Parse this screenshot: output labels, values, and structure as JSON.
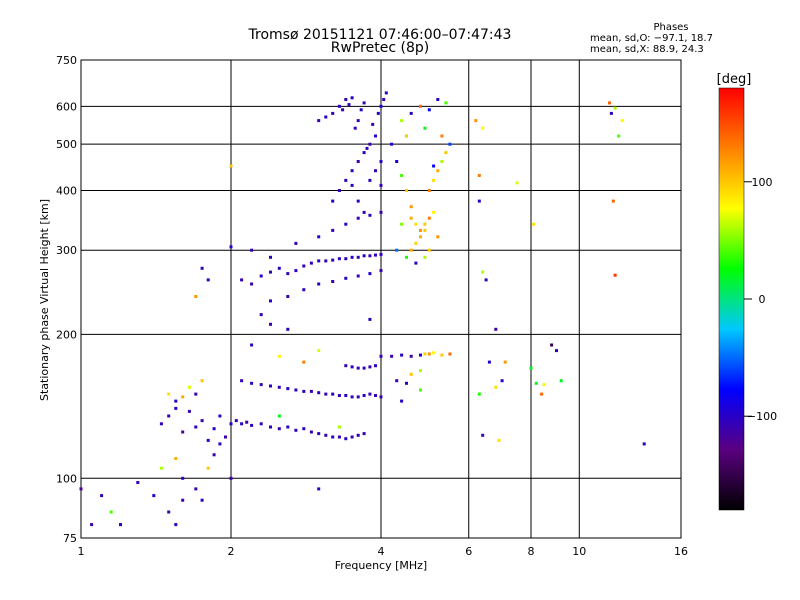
{
  "title_line1": "Tromsø 20151121 07:46:00–07:47:43",
  "title_line2": "RwPretec (8p)",
  "phases": {
    "heading": "Phases",
    "line_o": "mean, sd,O: −97.1, 18.7",
    "line_x": "mean, sd,X:  88.9, 24.3"
  },
  "colorbar": {
    "label": "[deg]",
    "range": [
      -180,
      180
    ],
    "ticks": [
      {
        "value": 100,
        "label": "100"
      },
      {
        "value": 0,
        "label": "0"
      },
      {
        "value": -100,
        "label": "−100"
      }
    ],
    "colors": [
      "#000000",
      "#5a0080",
      "#0000ff",
      "#00c8ff",
      "#00ff00",
      "#ffff00",
      "#ff8000",
      "#ff0000"
    ]
  },
  "chart_data": {
    "type": "scatter",
    "xlabel": "Frequency [MHz]",
    "ylabel": "Stationary phase Virtual Height [km]",
    "xscale": "log",
    "yscale": "log",
    "xlim": [
      1,
      16
    ],
    "ylim": [
      75,
      750
    ],
    "grid": true,
    "x_ticks": [
      {
        "v": 1,
        "l": "1"
      },
      {
        "v": 2,
        "l": "2"
      },
      {
        "v": 4,
        "l": "4"
      },
      {
        "v": 6,
        "l": "6"
      },
      {
        "v": 8,
        "l": "8"
      },
      {
        "v": 10,
        "l": "10"
      },
      {
        "v": 16,
        "l": "16"
      }
    ],
    "y_ticks": [
      {
        "v": 75,
        "l": "75"
      },
      {
        "v": 100,
        "l": "100"
      },
      {
        "v": 200,
        "l": "200"
      },
      {
        "v": 300,
        "l": "300"
      },
      {
        "v": 400,
        "l": "400"
      },
      {
        "v": 500,
        "l": "500"
      },
      {
        "v": 600,
        "l": "600"
      },
      {
        "v": 750,
        "l": "750"
      }
    ],
    "points": [
      [
        1.45,
        130,
        -105
      ],
      [
        1.5,
        135,
        -110
      ],
      [
        1.55,
        140,
        -100
      ],
      [
        1.6,
        125,
        -115
      ],
      [
        1.65,
        138,
        -108
      ],
      [
        1.7,
        128,
        -103
      ],
      [
        1.75,
        132,
        -112
      ],
      [
        1.8,
        120,
        -100
      ],
      [
        1.85,
        127,
        -95
      ],
      [
        1.9,
        135,
        -105
      ],
      [
        1.95,
        122,
        -110
      ],
      [
        2.0,
        130,
        -100
      ],
      [
        2.05,
        132,
        -108
      ],
      [
        2.1,
        130,
        -100
      ],
      [
        2.15,
        131,
        -112
      ],
      [
        2.2,
        129,
        -104
      ],
      [
        2.3,
        130,
        -108
      ],
      [
        2.4,
        128,
        -100
      ],
      [
        2.5,
        127,
        -110
      ],
      [
        2.6,
        128,
        -102
      ],
      [
        2.7,
        126,
        -106
      ],
      [
        2.8,
        127,
        -100
      ],
      [
        2.9,
        125,
        -108
      ],
      [
        3.0,
        124,
        -104
      ],
      [
        3.1,
        123,
        -110
      ],
      [
        3.2,
        122,
        -100
      ],
      [
        3.3,
        122,
        -108
      ],
      [
        3.4,
        121,
        -102
      ],
      [
        3.5,
        122,
        -106
      ],
      [
        3.6,
        123,
        -100
      ],
      [
        3.7,
        124,
        -108
      ],
      [
        2.1,
        160,
        -108
      ],
      [
        2.2,
        158,
        -100
      ],
      [
        2.3,
        157,
        -110
      ],
      [
        2.4,
        156,
        -104
      ],
      [
        2.5,
        155,
        -108
      ],
      [
        2.6,
        154,
        -100
      ],
      [
        2.7,
        153,
        -106
      ],
      [
        2.8,
        152,
        -102
      ],
      [
        2.9,
        152,
        -110
      ],
      [
        3.0,
        151,
        -100
      ],
      [
        3.1,
        150,
        -108
      ],
      [
        3.2,
        150,
        -102
      ],
      [
        3.3,
        149,
        -106
      ],
      [
        3.4,
        149,
        -100
      ],
      [
        3.5,
        148,
        -108
      ],
      [
        3.6,
        148,
        -104
      ],
      [
        3.7,
        149,
        -100
      ],
      [
        3.8,
        150,
        -106
      ],
      [
        3.9,
        149,
        -108
      ],
      [
        3.4,
        172,
        -110
      ],
      [
        3.5,
        171,
        -100
      ],
      [
        3.6,
        170,
        -108
      ],
      [
        3.7,
        170,
        -102
      ],
      [
        3.8,
        171,
        -106
      ],
      [
        3.9,
        172,
        -100
      ],
      [
        4.0,
        180,
        -105
      ],
      [
        4.2,
        180,
        -110
      ],
      [
        4.4,
        181,
        -100
      ],
      [
        4.6,
        180,
        -112
      ],
      [
        4.8,
        181,
        -102
      ],
      [
        4.3,
        160,
        -108
      ],
      [
        4.5,
        158,
        -100
      ],
      [
        4.0,
        148,
        -106
      ],
      [
        4.4,
        145,
        -100
      ],
      [
        4.9,
        182,
        95
      ],
      [
        5.0,
        182,
        120
      ],
      [
        5.1,
        183,
        80
      ],
      [
        5.3,
        181,
        100
      ],
      [
        5.5,
        182,
        140
      ],
      [
        4.8,
        168,
        60
      ],
      [
        4.6,
        165,
        100
      ],
      [
        4.8,
        153,
        40
      ],
      [
        2.1,
        260,
        -105
      ],
      [
        2.2,
        255,
        -110
      ],
      [
        2.3,
        265,
        -100
      ],
      [
        2.4,
        270,
        -108
      ],
      [
        2.5,
        275,
        -102
      ],
      [
        2.6,
        268,
        -106
      ],
      [
        2.7,
        272,
        -100
      ],
      [
        2.8,
        278,
        -110
      ],
      [
        2.9,
        282,
        -105
      ],
      [
        3.0,
        285,
        -100
      ],
      [
        3.1,
        285,
        -108
      ],
      [
        3.2,
        286,
        -104
      ],
      [
        3.3,
        288,
        -100
      ],
      [
        3.4,
        288,
        -106
      ],
      [
        3.5,
        290,
        -102
      ],
      [
        3.6,
        290,
        -110
      ],
      [
        3.7,
        292,
        -100
      ],
      [
        3.8,
        292,
        -108
      ],
      [
        3.9,
        293,
        -104
      ],
      [
        4.0,
        294,
        -100
      ],
      [
        2.4,
        235,
        -100
      ],
      [
        2.6,
        240,
        -108
      ],
      [
        2.8,
        248,
        -104
      ],
      [
        3.0,
        255,
        -100
      ],
      [
        3.2,
        258,
        -110
      ],
      [
        3.4,
        262,
        -102
      ],
      [
        3.6,
        265,
        -106
      ],
      [
        3.8,
        268,
        -100
      ],
      [
        4.0,
        272,
        -108
      ],
      [
        2.0,
        305,
        -100
      ],
      [
        2.2,
        300,
        -108
      ],
      [
        2.4,
        290,
        -102
      ],
      [
        2.7,
        310,
        -106
      ],
      [
        3.0,
        320,
        -100
      ],
      [
        3.2,
        330,
        -108
      ],
      [
        3.4,
        340,
        -102
      ],
      [
        3.6,
        350,
        -106
      ],
      [
        3.8,
        355,
        -100
      ],
      [
        4.0,
        360,
        -110
      ],
      [
        3.2,
        380,
        -100
      ],
      [
        3.3,
        400,
        -108
      ],
      [
        3.4,
        420,
        -104
      ],
      [
        3.5,
        440,
        -100
      ],
      [
        3.6,
        460,
        -110
      ],
      [
        3.7,
        480,
        -102
      ],
      [
        3.8,
        500,
        -108
      ],
      [
        3.9,
        520,
        -100
      ],
      [
        3.55,
        540,
        -106
      ],
      [
        3.6,
        560,
        -104
      ],
      [
        3.65,
        590,
        -100
      ],
      [
        3.7,
        610,
        -108
      ],
      [
        3.5,
        410,
        -104
      ],
      [
        3.6,
        380,
        -100
      ],
      [
        3.7,
        360,
        -108
      ],
      [
        3.8,
        420,
        -102
      ],
      [
        3.9,
        440,
        -106
      ],
      [
        4.0,
        460,
        -100
      ],
      [
        3.75,
        490,
        -104
      ],
      [
        3.85,
        550,
        -110
      ],
      [
        3.95,
        580,
        -100
      ],
      [
        4.05,
        620,
        -108
      ],
      [
        4.1,
        640,
        -104
      ],
      [
        4.0,
        600,
        -100
      ],
      [
        3.0,
        560,
        -108
      ],
      [
        3.1,
        570,
        -100
      ],
      [
        3.2,
        580,
        -106
      ],
      [
        3.3,
        600,
        -102
      ],
      [
        3.4,
        620,
        -110
      ],
      [
        3.5,
        625,
        -100
      ],
      [
        3.35,
        590,
        -108
      ],
      [
        3.45,
        605,
        -104
      ],
      [
        4.2,
        500,
        -100
      ],
      [
        4.3,
        460,
        -90
      ],
      [
        4.4,
        430,
        40
      ],
      [
        4.5,
        400,
        100
      ],
      [
        4.6,
        370,
        120
      ],
      [
        4.7,
        340,
        90
      ],
      [
        4.8,
        320,
        110
      ],
      [
        4.9,
        330,
        100
      ],
      [
        5.0,
        350,
        130
      ],
      [
        5.1,
        360,
        80
      ],
      [
        4.6,
        300,
        110
      ],
      [
        4.7,
        310,
        95
      ],
      [
        4.8,
        330,
        120
      ],
      [
        4.9,
        340,
        100
      ],
      [
        5.0,
        400,
        130
      ],
      [
        5.1,
        420,
        90
      ],
      [
        5.2,
        440,
        110
      ],
      [
        5.3,
        460,
        60
      ],
      [
        5.4,
        480,
        100
      ],
      [
        5.5,
        500,
        -60
      ],
      [
        4.4,
        560,
        60
      ],
      [
        4.6,
        580,
        -100
      ],
      [
        4.8,
        600,
        140
      ],
      [
        5.0,
        590,
        -80
      ],
      [
        5.2,
        620,
        -100
      ],
      [
        5.4,
        610,
        40
      ],
      [
        4.5,
        520,
        100
      ],
      [
        4.9,
        540,
        20
      ],
      [
        5.1,
        450,
        -80
      ],
      [
        5.3,
        520,
        130
      ],
      [
        4.3,
        300,
        -50
      ],
      [
        4.5,
        290,
        30
      ],
      [
        4.7,
        282,
        -100
      ],
      [
        4.9,
        290,
        60
      ],
      [
        5.0,
        300,
        100
      ],
      [
        5.2,
        320,
        120
      ],
      [
        4.4,
        340,
        50
      ],
      [
        4.6,
        350,
        110
      ],
      [
        1.0,
        95,
        -120
      ],
      [
        1.1,
        92,
        -105
      ],
      [
        1.15,
        85,
        40
      ],
      [
        1.05,
        80,
        -110
      ],
      [
        1.2,
        80,
        -100
      ],
      [
        1.3,
        98,
        -110
      ],
      [
        1.4,
        92,
        -95
      ],
      [
        1.5,
        85,
        -108
      ],
      [
        1.55,
        80,
        -100
      ],
      [
        1.6,
        90,
        -110
      ],
      [
        1.45,
        105,
        60
      ],
      [
        1.55,
        110,
        110
      ],
      [
        1.6,
        100,
        -105
      ],
      [
        1.7,
        95,
        -110
      ],
      [
        1.75,
        90,
        -100
      ],
      [
        1.8,
        105,
        100
      ],
      [
        1.85,
        112,
        -108
      ],
      [
        1.9,
        118,
        -100
      ],
      [
        1.5,
        150,
        90
      ],
      [
        1.55,
        145,
        -100
      ],
      [
        1.6,
        148,
        110
      ],
      [
        1.65,
        155,
        70
      ],
      [
        1.7,
        150,
        -108
      ],
      [
        1.75,
        160,
        100
      ],
      [
        1.7,
        240,
        120
      ],
      [
        1.8,
        260,
        -100
      ],
      [
        1.75,
        275,
        -105
      ],
      [
        2.0,
        450,
        100
      ],
      [
        2.3,
        220,
        -110
      ],
      [
        2.2,
        190,
        -100
      ],
      [
        2.5,
        180,
        80
      ],
      [
        2.8,
        175,
        130
      ],
      [
        3.0,
        185,
        70
      ],
      [
        2.6,
        205,
        -100
      ],
      [
        2.4,
        210,
        -108
      ],
      [
        3.0,
        95,
        -100
      ],
      [
        2.0,
        100,
        -110
      ],
      [
        2.5,
        135,
        20
      ],
      [
        3.3,
        128,
        60
      ],
      [
        3.8,
        215,
        -100
      ],
      [
        4.0,
        410,
        -104
      ],
      [
        6.2,
        560,
        120
      ],
      [
        6.4,
        540,
        80
      ],
      [
        6.3,
        380,
        -100
      ],
      [
        6.4,
        270,
        60
      ],
      [
        6.5,
        260,
        -105
      ],
      [
        6.8,
        205,
        -110
      ],
      [
        6.3,
        430,
        130
      ],
      [
        6.6,
        175,
        -100
      ],
      [
        7.0,
        160,
        -100
      ],
      [
        7.1,
        175,
        120
      ],
      [
        6.8,
        155,
        90
      ],
      [
        6.3,
        150,
        30
      ],
      [
        6.4,
        123,
        -108
      ],
      [
        6.9,
        120,
        90
      ],
      [
        8.0,
        170,
        20
      ],
      [
        8.2,
        158,
        20
      ],
      [
        8.5,
        157,
        80
      ],
      [
        8.8,
        190,
        -150
      ],
      [
        9.0,
        185,
        -100
      ],
      [
        9.2,
        160,
        20
      ],
      [
        8.4,
        150,
        140
      ],
      [
        8.1,
        340,
        90
      ],
      [
        7.5,
        415,
        70
      ],
      [
        11.5,
        610,
        140
      ],
      [
        11.8,
        595,
        60
      ],
      [
        11.6,
        580,
        -105
      ],
      [
        12.0,
        520,
        40
      ],
      [
        12.2,
        560,
        80
      ],
      [
        11.7,
        380,
        140
      ],
      [
        11.8,
        266,
        160
      ],
      [
        13.5,
        118,
        -100
      ]
    ]
  }
}
